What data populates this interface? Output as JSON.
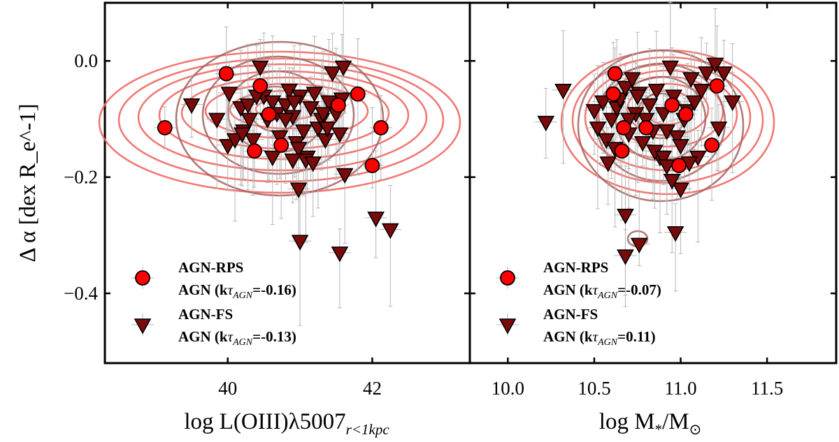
{
  "chart_data": {
    "type": "scatter",
    "ylabel": "Δ α [dex R_e^-1]",
    "ylim": [
      -0.52,
      0.1
    ],
    "yticks": [
      0.0,
      -0.2,
      -0.4
    ],
    "ytick_labels": [
      "0.0",
      "−0.2",
      "−0.4"
    ],
    "colors": {
      "rps_fill": "#ff0000",
      "fs_fill": "#7a0b0b",
      "contour_rps": "#ee6a66",
      "contour_fs": "#a3625e",
      "errorbar": "#b5b5b5"
    },
    "panels": [
      {
        "id": "left",
        "xlabel": "log L(OIII)λ5007",
        "xlabel_sub": "r<1kpc",
        "xlim": [
          38.3,
          43.35
        ],
        "xticks": [
          40,
          42
        ],
        "xtick_labels": [
          "40",
          "42"
        ],
        "legend": [
          {
            "marker": "circle",
            "name": "AGN-RPS",
            "stat_prefix": "AGN (k",
            "stat_symbol": "τ",
            "stat_sub": "AGN",
            "stat_value": "=-0.16)"
          },
          {
            "marker": "triangle",
            "name": "AGN-FS",
            "stat_prefix": "AGN (k",
            "stat_symbol": "τ",
            "stat_sub": "AGN",
            "stat_value": "=-0.13)"
          }
        ],
        "series": [
          {
            "name": "AGN-RPS",
            "marker": "circle",
            "x": [
              39.13,
              39.98,
              40.45,
              40.57,
              40.37,
              40.74,
              41.53,
              41.8,
              42.12,
              42.0
            ],
            "y": [
              -0.115,
              -0.022,
              -0.043,
              -0.092,
              -0.155,
              -0.145,
              -0.076,
              -0.057,
              -0.115,
              -0.18
            ]
          },
          {
            "name": "AGN-FS",
            "marker": "triangle",
            "x": [
              39.5,
              39.85,
              40.02,
              40.18,
              40.22,
              40.28,
              40.35,
              40.5,
              40.55,
              40.62,
              40.68,
              40.72,
              40.8,
              40.85,
              40.9,
              40.95,
              41.0,
              41.05,
              41.1,
              41.15,
              41.2,
              41.25,
              41.3,
              41.35,
              41.4,
              41.45,
              41.5,
              41.55,
              41.6,
              40.0,
              40.1,
              40.2,
              40.3,
              40.4,
              40.45,
              40.62,
              40.8,
              40.92,
              40.98,
              41.08,
              41.18,
              41.32,
              41.38,
              41.58,
              41.62,
              42.05,
              42.25,
              40.98,
              41.0,
              41.55,
              40.9
            ],
            "y": [
              -0.075,
              -0.1,
              -0.055,
              -0.08,
              -0.12,
              -0.075,
              -0.135,
              -0.06,
              -0.1,
              -0.07,
              -0.09,
              -0.13,
              -0.075,
              -0.05,
              -0.095,
              -0.14,
              -0.06,
              -0.12,
              -0.165,
              -0.08,
              -0.055,
              -0.115,
              -0.1,
              -0.135,
              -0.07,
              -0.02,
              -0.09,
              -0.125,
              -0.01,
              -0.145,
              -0.135,
              -0.125,
              -0.1,
              -0.06,
              -0.01,
              -0.165,
              -0.1,
              -0.07,
              -0.15,
              -0.17,
              -0.175,
              -0.09,
              -0.115,
              -0.065,
              -0.195,
              -0.27,
              -0.29,
              -0.22,
              -0.31,
              -0.33,
              -0.17
            ]
          }
        ]
      },
      {
        "id": "right",
        "xlabel": "log M",
        "xlabel_sub": "*",
        "xlabel_tail": "/M",
        "xlabel_tail_sub": "⊙",
        "xlim": [
          9.78,
          11.9
        ],
        "xticks": [
          10.0,
          10.5,
          11.0,
          11.5
        ],
        "xtick_labels": [
          "10.0",
          "10.5",
          "11.0",
          "11.5"
        ],
        "legend": [
          {
            "marker": "circle",
            "name": "AGN-RPS",
            "stat_prefix": "AGN (k",
            "stat_symbol": "τ",
            "stat_sub": "AGN",
            "stat_value": "=-0.07)"
          },
          {
            "marker": "triangle",
            "name": "AGN-FS",
            "stat_prefix": "AGN (k",
            "stat_symbol": "τ",
            "stat_sub": "AGN",
            "stat_value": "=0.11)"
          }
        ],
        "series": [
          {
            "name": "AGN-RPS",
            "marker": "circle",
            "x": [
              10.62,
              10.61,
              10.67,
              10.66,
              10.8,
              10.95,
              11.03,
              11.21,
              11.18,
              10.99
            ],
            "y": [
              -0.022,
              -0.057,
              -0.115,
              -0.155,
              -0.115,
              -0.076,
              -0.092,
              -0.043,
              -0.145,
              -0.18
            ]
          },
          {
            "name": "AGN-FS",
            "marker": "triangle",
            "x": [
              10.22,
              10.32,
              10.5,
              10.52,
              10.55,
              10.57,
              10.6,
              10.63,
              10.65,
              10.68,
              10.7,
              10.72,
              10.74,
              10.76,
              10.78,
              10.8,
              10.82,
              10.84,
              10.86,
              10.88,
              10.9,
              10.92,
              10.94,
              10.96,
              10.98,
              11.0,
              11.02,
              11.04,
              11.06,
              11.08,
              11.1,
              11.12,
              11.15,
              11.2,
              11.25,
              11.3,
              10.58,
              10.62,
              10.7,
              10.75,
              10.85,
              10.9,
              11.0,
              10.92,
              10.95,
              11.22,
              10.68,
              10.68,
              10.76,
              10.97,
              11.05
            ],
            "y": [
              -0.105,
              -0.05,
              -0.085,
              -0.115,
              -0.07,
              -0.135,
              -0.1,
              -0.08,
              -0.065,
              -0.045,
              -0.125,
              -0.03,
              -0.09,
              -0.055,
              -0.14,
              -0.1,
              -0.075,
              -0.12,
              -0.05,
              -0.165,
              -0.09,
              -0.12,
              -0.01,
              -0.06,
              -0.13,
              -0.145,
              -0.1,
              -0.085,
              -0.03,
              -0.07,
              -0.165,
              -0.05,
              -0.02,
              -0.005,
              -0.02,
              -0.07,
              -0.175,
              -0.15,
              -0.1,
              -0.06,
              -0.155,
              -0.165,
              -0.22,
              -0.18,
              -0.205,
              -0.115,
              -0.265,
              -0.335,
              -0.315,
              -0.295,
              -0.175
            ]
          }
        ]
      }
    ]
  }
}
